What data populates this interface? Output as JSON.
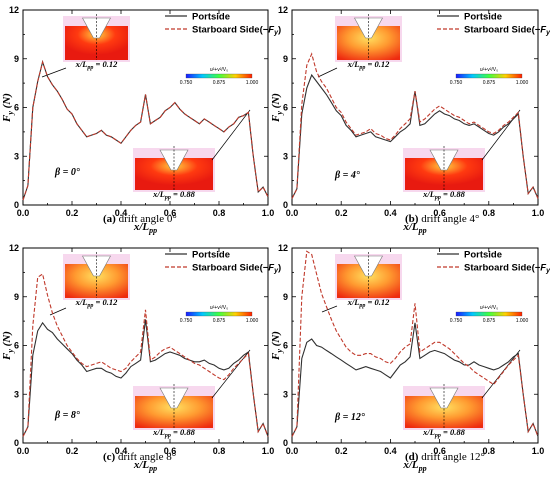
{
  "chart_data": [
    {
      "type": "line",
      "panel": "a",
      "caption_letter": "(a)",
      "caption_text": " drift angle 0°",
      "beta_label": "β = 0°",
      "xlabel": "x/Lpp",
      "ylabel": "Fy (N)",
      "xlim": [
        0,
        1
      ],
      "ylim": [
        0,
        12
      ],
      "xticks": [
        "0.0",
        "0.2",
        "0.4",
        "0.6",
        "0.8",
        "1.0"
      ],
      "yticks": [
        "0",
        "3",
        "6",
        "9",
        "12"
      ],
      "legend": [
        "Portside",
        "Starboard Side(−Fy)"
      ],
      "insets": [
        {
          "label": "x/Lpp = 0.12"
        },
        {
          "label": "x/Lpp = 0.88"
        }
      ],
      "colorbar_ticks": [
        "0.750",
        "0.875",
        "1.000"
      ],
      "colorbar_title": "u²+v²/V₀",
      "series": [
        {
          "name": "Portside",
          "x": [
            0,
            0.02,
            0.04,
            0.06,
            0.08,
            0.1,
            0.12,
            0.14,
            0.16,
            0.18,
            0.2,
            0.22,
            0.24,
            0.26,
            0.28,
            0.3,
            0.32,
            0.34,
            0.36,
            0.38,
            0.4,
            0.42,
            0.44,
            0.46,
            0.48,
            0.5,
            0.52,
            0.54,
            0.56,
            0.58,
            0.6,
            0.62,
            0.64,
            0.66,
            0.68,
            0.7,
            0.72,
            0.74,
            0.76,
            0.78,
            0.8,
            0.82,
            0.84,
            0.86,
            0.88,
            0.9,
            0.92,
            0.94,
            0.96,
            0.98,
            1.0
          ],
          "y": [
            0.3,
            1.2,
            6.0,
            7.6,
            8.8,
            7.9,
            7.4,
            7.0,
            6.5,
            5.9,
            5.6,
            5.0,
            4.6,
            4.2,
            4.3,
            4.4,
            4.6,
            4.3,
            4.2,
            4.0,
            3.8,
            4.2,
            4.6,
            4.9,
            5.1,
            6.8,
            5.0,
            5.2,
            5.4,
            5.8,
            6.0,
            6.3,
            5.9,
            5.6,
            5.4,
            5.2,
            5.0,
            5.3,
            5.1,
            4.9,
            4.7,
            4.5,
            4.8,
            5.0,
            5.4,
            5.5,
            5.7,
            3.0,
            0.8,
            1.1,
            0.5
          ]
        },
        {
          "name": "Starboard Side(−Fy)",
          "x": [
            0,
            0.02,
            0.04,
            0.06,
            0.08,
            0.1,
            0.12,
            0.14,
            0.16,
            0.18,
            0.2,
            0.22,
            0.24,
            0.26,
            0.28,
            0.3,
            0.32,
            0.34,
            0.36,
            0.38,
            0.4,
            0.42,
            0.44,
            0.46,
            0.48,
            0.5,
            0.52,
            0.54,
            0.56,
            0.58,
            0.6,
            0.62,
            0.64,
            0.66,
            0.68,
            0.7,
            0.72,
            0.74,
            0.76,
            0.78,
            0.8,
            0.82,
            0.84,
            0.86,
            0.88,
            0.9,
            0.92,
            0.94,
            0.96,
            0.98,
            1.0
          ],
          "y": [
            0.3,
            1.2,
            6.0,
            7.6,
            8.8,
            7.9,
            7.4,
            7.0,
            6.5,
            5.9,
            5.6,
            5.0,
            4.6,
            4.2,
            4.3,
            4.4,
            4.6,
            4.3,
            4.2,
            4.0,
            3.8,
            4.2,
            4.6,
            4.9,
            5.1,
            6.8,
            5.0,
            5.2,
            5.4,
            5.8,
            6.0,
            6.3,
            5.9,
            5.6,
            5.4,
            5.2,
            5.0,
            5.3,
            5.1,
            4.9,
            4.7,
            4.5,
            4.8,
            5.0,
            5.4,
            5.5,
            5.7,
            3.0,
            0.8,
            1.1,
            0.5
          ]
        }
      ]
    },
    {
      "type": "line",
      "panel": "b",
      "caption_letter": "(b)",
      "caption_text": " drift angle 4°",
      "beta_label": "β = 4°",
      "xlabel": "x/Lpp",
      "ylabel": "Fy (N)",
      "xlim": [
        0,
        1
      ],
      "ylim": [
        0,
        12
      ],
      "xticks": [
        "0.0",
        "0.2",
        "0.4",
        "0.6",
        "0.8",
        "1.0"
      ],
      "yticks": [
        "0",
        "3",
        "6",
        "9",
        "12"
      ],
      "legend": [
        "Portside",
        "Starboard Side(−Fy)"
      ],
      "insets": [
        {
          "label": "x/Lpp = 0.12"
        },
        {
          "label": "x/Lpp = 0.88"
        }
      ],
      "colorbar_ticks": [
        "0.750",
        "0.875",
        "1.000"
      ],
      "colorbar_title": "u²+v²/V₀",
      "series": [
        {
          "name": "Portside",
          "x": [
            0,
            0.02,
            0.04,
            0.06,
            0.08,
            0.1,
            0.12,
            0.14,
            0.16,
            0.18,
            0.2,
            0.22,
            0.24,
            0.26,
            0.28,
            0.3,
            0.32,
            0.34,
            0.36,
            0.38,
            0.4,
            0.42,
            0.44,
            0.46,
            0.48,
            0.5,
            0.52,
            0.54,
            0.56,
            0.58,
            0.6,
            0.62,
            0.64,
            0.66,
            0.68,
            0.7,
            0.72,
            0.74,
            0.76,
            0.78,
            0.8,
            0.82,
            0.84,
            0.86,
            0.88,
            0.9,
            0.92,
            0.94,
            0.96,
            0.98,
            1.0
          ],
          "y": [
            0.4,
            1.0,
            5.6,
            7.2,
            8.0,
            7.6,
            7.2,
            6.8,
            6.3,
            5.8,
            5.5,
            4.9,
            4.6,
            4.2,
            4.3,
            4.4,
            4.5,
            4.2,
            4.1,
            4.0,
            3.9,
            4.2,
            4.5,
            4.7,
            5.0,
            7.0,
            4.9,
            5.0,
            5.3,
            5.6,
            5.8,
            5.6,
            5.5,
            5.3,
            5.2,
            5.0,
            4.9,
            5.0,
            4.8,
            4.6,
            4.4,
            4.3,
            4.5,
            4.8,
            5.0,
            5.3,
            5.6,
            3.0,
            0.7,
            1.1,
            0.4
          ]
        },
        {
          "name": "Starboard Side(−Fy)",
          "x": [
            0,
            0.02,
            0.04,
            0.06,
            0.08,
            0.1,
            0.12,
            0.14,
            0.16,
            0.18,
            0.2,
            0.22,
            0.24,
            0.26,
            0.28,
            0.3,
            0.32,
            0.34,
            0.36,
            0.38,
            0.4,
            0.42,
            0.44,
            0.46,
            0.48,
            0.5,
            0.52,
            0.54,
            0.56,
            0.58,
            0.6,
            0.62,
            0.64,
            0.66,
            0.68,
            0.7,
            0.72,
            0.74,
            0.76,
            0.78,
            0.8,
            0.82,
            0.84,
            0.86,
            0.88,
            0.9,
            0.92,
            0.94,
            0.96,
            0.98,
            1.0
          ],
          "y": [
            0.4,
            1.0,
            6.2,
            8.6,
            9.3,
            8.2,
            7.6,
            7.2,
            6.6,
            6.0,
            5.7,
            5.1,
            4.7,
            4.3,
            4.4,
            4.5,
            4.7,
            4.4,
            4.3,
            4.1,
            4.0,
            4.3,
            4.7,
            5.0,
            5.3,
            7.0,
            5.1,
            5.3,
            5.6,
            5.9,
            6.1,
            5.9,
            5.7,
            5.5,
            5.4,
            5.2,
            5.0,
            5.1,
            4.9,
            4.7,
            4.5,
            4.4,
            4.6,
            4.9,
            5.1,
            5.4,
            5.7,
            3.0,
            0.7,
            1.1,
            0.4
          ]
        }
      ]
    },
    {
      "type": "line",
      "panel": "c",
      "caption_letter": "(c)",
      "caption_text": " drift angle 8°",
      "beta_label": "β = 8°",
      "xlabel": "x/Lpp",
      "ylabel": "Fy (N)",
      "xlim": [
        0,
        1
      ],
      "ylim": [
        0,
        12
      ],
      "xticks": [
        "0.0",
        "0.2",
        "0.4",
        "0.6",
        "0.8",
        "1.0"
      ],
      "yticks": [
        "0",
        "3",
        "6",
        "9",
        "12"
      ],
      "legend": [
        "Portside",
        "Starboard Side(−Fy)"
      ],
      "insets": [
        {
          "label": "x/Lpp = 0.12"
        },
        {
          "label": "x/Lpp = 0.88"
        }
      ],
      "colorbar_ticks": [
        "0.750",
        "0.875",
        "1.000"
      ],
      "colorbar_title": "u²+v²/V₀",
      "series": [
        {
          "name": "Portside",
          "x": [
            0,
            0.02,
            0.04,
            0.06,
            0.08,
            0.1,
            0.12,
            0.14,
            0.16,
            0.18,
            0.2,
            0.22,
            0.24,
            0.26,
            0.28,
            0.3,
            0.32,
            0.34,
            0.36,
            0.38,
            0.4,
            0.42,
            0.44,
            0.46,
            0.48,
            0.5,
            0.52,
            0.54,
            0.56,
            0.58,
            0.6,
            0.62,
            0.64,
            0.66,
            0.68,
            0.7,
            0.72,
            0.74,
            0.76,
            0.78,
            0.8,
            0.82,
            0.84,
            0.86,
            0.88,
            0.9,
            0.92,
            0.94,
            0.96,
            0.98,
            1.0
          ],
          "y": [
            0.4,
            1.0,
            5.4,
            6.9,
            7.4,
            7.0,
            6.8,
            6.4,
            6.1,
            5.8,
            5.5,
            5.1,
            4.8,
            4.4,
            4.5,
            4.6,
            4.6,
            4.4,
            4.3,
            4.1,
            4.0,
            4.3,
            4.7,
            4.9,
            5.1,
            7.6,
            5.0,
            5.1,
            5.3,
            5.5,
            5.6,
            5.5,
            5.4,
            5.2,
            5.1,
            5.0,
            5.0,
            5.1,
            4.9,
            4.8,
            4.6,
            4.5,
            4.6,
            4.9,
            5.1,
            5.4,
            5.6,
            3.0,
            0.7,
            1.2,
            0.4
          ]
        },
        {
          "name": "Starboard Side(−Fy)",
          "x": [
            0,
            0.02,
            0.04,
            0.06,
            0.08,
            0.1,
            0.12,
            0.14,
            0.16,
            0.18,
            0.2,
            0.22,
            0.24,
            0.26,
            0.28,
            0.3,
            0.32,
            0.34,
            0.36,
            0.38,
            0.4,
            0.42,
            0.44,
            0.46,
            0.48,
            0.5,
            0.52,
            0.54,
            0.56,
            0.58,
            0.6,
            0.62,
            0.64,
            0.66,
            0.68,
            0.7,
            0.72,
            0.74,
            0.76,
            0.78,
            0.8,
            0.82,
            0.84,
            0.86,
            0.88,
            0.9,
            0.92,
            0.94,
            0.96,
            0.98,
            1.0
          ],
          "y": [
            0.4,
            1.0,
            7.2,
            10.2,
            10.4,
            9.1,
            8.0,
            7.2,
            6.6,
            6.0,
            5.6,
            5.2,
            4.9,
            4.7,
            4.8,
            4.9,
            5.0,
            4.8,
            4.6,
            4.5,
            4.4,
            4.6,
            5.0,
            5.3,
            5.6,
            8.2,
            5.1,
            5.3,
            5.6,
            5.8,
            5.9,
            5.7,
            5.5,
            5.3,
            5.1,
            4.9,
            4.8,
            4.6,
            4.4,
            4.2,
            4.0,
            3.9,
            4.2,
            4.6,
            4.9,
            5.2,
            5.5,
            3.0,
            0.7,
            1.2,
            0.4
          ]
        }
      ]
    },
    {
      "type": "line",
      "panel": "d",
      "caption_letter": "(d)",
      "caption_text": " drift angle 12°",
      "beta_label": "β = 12°",
      "xlabel": "x/Lpp",
      "ylabel": "Fy (N)",
      "xlim": [
        0,
        1
      ],
      "ylim": [
        0,
        12
      ],
      "xticks": [
        "0.0",
        "0.2",
        "0.4",
        "0.6",
        "0.8",
        "1.0"
      ],
      "yticks": [
        "0",
        "3",
        "6",
        "9",
        "12"
      ],
      "legend": [
        "Portside",
        "Starboard Side(−Fy)"
      ],
      "insets": [
        {
          "label": "x/Lpp = 0.12"
        },
        {
          "label": "x/Lpp = 0.88"
        }
      ],
      "colorbar_ticks": [
        "0.750",
        "0.875",
        "1.000"
      ],
      "colorbar_title": "u²+v²/V₀",
      "series": [
        {
          "name": "Portside",
          "x": [
            0,
            0.02,
            0.04,
            0.06,
            0.08,
            0.1,
            0.12,
            0.14,
            0.16,
            0.18,
            0.2,
            0.22,
            0.24,
            0.26,
            0.28,
            0.3,
            0.32,
            0.34,
            0.36,
            0.38,
            0.4,
            0.42,
            0.44,
            0.46,
            0.48,
            0.5,
            0.52,
            0.54,
            0.56,
            0.58,
            0.6,
            0.62,
            0.64,
            0.66,
            0.68,
            0.7,
            0.72,
            0.74,
            0.76,
            0.78,
            0.8,
            0.82,
            0.84,
            0.86,
            0.88,
            0.9,
            0.92,
            0.94,
            0.96,
            0.98,
            1.0
          ],
          "y": [
            0.4,
            1.0,
            5.2,
            6.2,
            6.4,
            6.0,
            5.9,
            5.7,
            5.5,
            5.3,
            5.1,
            4.9,
            4.7,
            4.5,
            4.6,
            4.7,
            4.6,
            4.5,
            4.4,
            4.2,
            4.0,
            4.4,
            4.8,
            5.0,
            5.3,
            7.4,
            5.2,
            5.4,
            5.6,
            5.7,
            5.6,
            5.5,
            5.3,
            5.1,
            5.0,
            4.8,
            4.8,
            5.0,
            4.8,
            4.7,
            4.6,
            4.5,
            4.6,
            4.8,
            5.0,
            5.3,
            5.5,
            3.0,
            0.7,
            1.2,
            0.4
          ]
        },
        {
          "name": "Starboard Side(−Fy)",
          "x": [
            0,
            0.02,
            0.04,
            0.06,
            0.08,
            0.1,
            0.12,
            0.14,
            0.16,
            0.18,
            0.2,
            0.22,
            0.24,
            0.26,
            0.28,
            0.3,
            0.32,
            0.34,
            0.36,
            0.38,
            0.4,
            0.42,
            0.44,
            0.46,
            0.48,
            0.5,
            0.52,
            0.54,
            0.56,
            0.58,
            0.6,
            0.62,
            0.64,
            0.66,
            0.68,
            0.7,
            0.72,
            0.74,
            0.76,
            0.78,
            0.8,
            0.82,
            0.84,
            0.86,
            0.88,
            0.9,
            0.92,
            0.94,
            0.96,
            0.98,
            1.0
          ],
          "y": [
            0.4,
            1.0,
            9.0,
            11.8,
            11.6,
            10.4,
            9.2,
            8.4,
            7.6,
            6.9,
            6.4,
            5.9,
            5.6,
            5.4,
            5.4,
            5.5,
            5.5,
            5.3,
            5.2,
            5.0,
            4.9,
            5.2,
            5.6,
            5.9,
            6.1,
            8.6,
            5.6,
            5.8,
            6.0,
            6.2,
            6.2,
            6.0,
            5.8,
            5.5,
            5.2,
            4.9,
            4.7,
            4.4,
            4.2,
            4.0,
            3.8,
            3.6,
            4.0,
            4.4,
            4.8,
            5.1,
            5.4,
            3.0,
            0.7,
            1.2,
            0.4
          ]
        }
      ]
    }
  ]
}
